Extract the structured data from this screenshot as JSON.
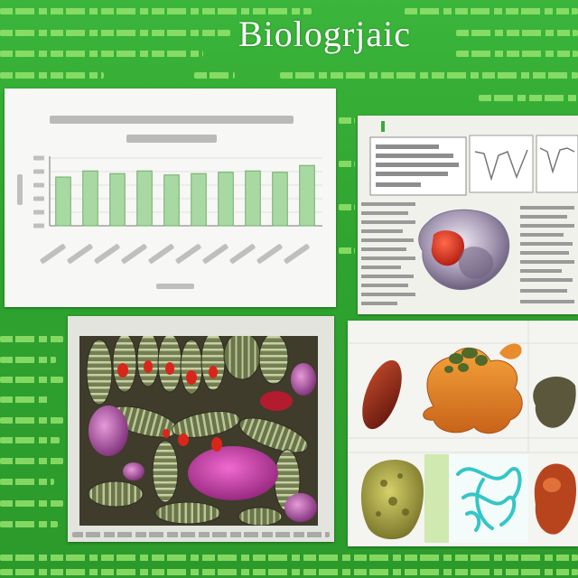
{
  "title": "Biologrjaic",
  "colors": {
    "background": "#2fa32f",
    "garbled_text": "#94e36c",
    "bar_fill": "#a9d9a2",
    "bar_stroke": "#6fae6a"
  },
  "chart_data": {
    "type": "bar",
    "title": "",
    "xlabel": "",
    "ylabel": "",
    "ylim": [
      0,
      1
    ],
    "grid": true,
    "values": [
      0.72,
      0.81,
      0.77,
      0.81,
      0.75,
      0.77,
      0.79,
      0.81,
      0.79,
      0.89
    ]
  }
}
